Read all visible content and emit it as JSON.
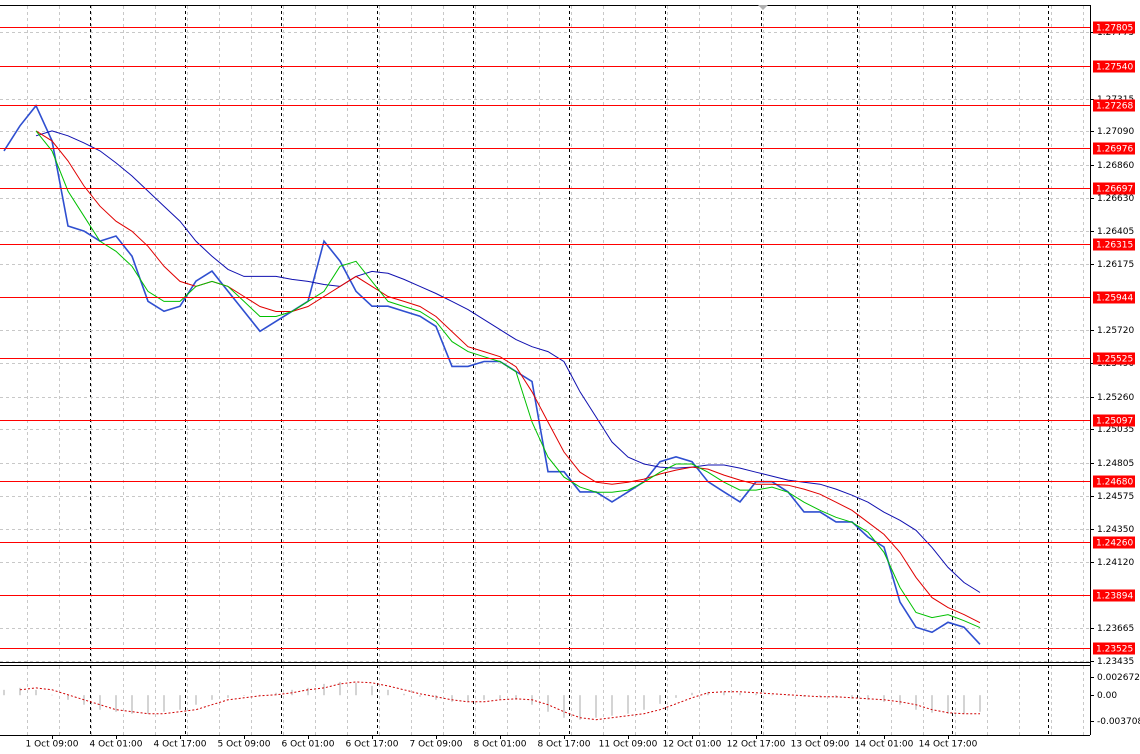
{
  "chart_data": [
    {
      "type": "line",
      "categories": [
        null,
        null,
        null,
        "1 Oct 09:00",
        null,
        null,
        null,
        "4 Oct 01:00",
        null,
        null,
        null,
        "4 Oct 17:00",
        null,
        null,
        null,
        "5 Oct 09:00",
        null,
        null,
        null,
        "6 Oct 01:00",
        null,
        null,
        null,
        "6 Oct 17:00",
        null,
        null,
        null,
        "7 Oct 09:00",
        null,
        null,
        null,
        "8 Oct 01:00",
        null,
        null,
        null,
        "8 Oct 17:00",
        null,
        null,
        null,
        "11 Oct 09:00",
        null,
        null,
        null,
        "12 Oct 01:00",
        null,
        null,
        null,
        "12 Oct 17:00",
        null,
        null,
        null,
        "13 Oct 09:00",
        null,
        null,
        null,
        "14 Oct 01:00",
        null,
        null,
        null,
        "14 Oct 17:00",
        null,
        null
      ],
      "series": [
        {
          "color": "#2f4fd0",
          "values": [
            1.26954,
            1.27127,
            1.27266,
            1.27024,
            1.26436,
            1.26401,
            1.26332,
            1.26367,
            1.26228,
            1.25917,
            1.25848,
            1.25883,
            1.26056,
            1.26125,
            1.25986,
            1.25848,
            1.2571,
            1.25779,
            1.25848,
            1.25917,
            1.26332,
            1.26194,
            1.25986,
            1.25883,
            1.25883,
            1.25848,
            1.25814,
            1.25744,
            1.25468,
            1.25468,
            1.25502,
            1.25502,
            1.25433,
            1.25364,
            1.24742,
            1.24742,
            1.24603,
            1.24603,
            1.24534,
            1.24603,
            1.24673,
            1.24811,
            1.24845,
            1.24811,
            1.24673,
            1.24603,
            1.24534,
            1.24673,
            1.24673,
            1.24603,
            1.24465,
            1.24465,
            1.24396,
            1.24396,
            1.24292,
            1.24223,
            1.23843,
            1.2367,
            1.23635,
            1.23704,
            1.2367,
            1.23552
          ]
        },
        {
          "color": "#1010b0",
          "values": [
            null,
            null,
            1.27058,
            1.27092,
            1.27058,
            1.27009,
            1.26954,
            1.26871,
            1.26781,
            1.26677,
            1.26573,
            1.26469,
            1.26331,
            1.26227,
            1.26137,
            1.26089,
            1.26089,
            1.26089,
            1.26068,
            1.26054,
            1.26033,
            1.2602,
            1.26089,
            1.26123,
            1.2611,
            1.26068,
            1.2602,
            1.25971,
            1.25916,
            1.2586,
            1.25791,
            1.25722,
            1.25653,
            1.25604,
            1.2557,
            1.25501,
            1.25293,
            1.2512,
            1.24947,
            1.24843,
            1.24795,
            1.24774,
            1.24767,
            1.24774,
            1.24788,
            1.24788,
            1.24767,
            1.24739,
            1.24712,
            1.24684,
            1.2467,
            1.24656,
            1.24622,
            1.2458,
            1.24532,
            1.24463,
            1.24407,
            1.24338,
            1.2422,
            1.24082,
            1.23978,
            1.23909
          ]
        },
        {
          "color": "#e00000",
          "values": [
            null,
            null,
            1.27092,
            1.27023,
            1.26885,
            1.26712,
            1.26573,
            1.26469,
            1.264,
            1.26296,
            1.26158,
            1.26054,
            1.2602,
            1.26054,
            1.2602,
            1.2595,
            1.25881,
            1.25847,
            1.25847,
            1.25881,
            1.2595,
            1.2602,
            1.26089,
            1.2602,
            1.2595,
            1.25916,
            1.25881,
            1.25812,
            1.25708,
            1.25604,
            1.2557,
            1.25535,
            1.25466,
            1.25293,
            1.25085,
            1.24878,
            1.24739,
            1.2467,
            1.24656,
            1.2467,
            1.24691,
            1.24726,
            1.24753,
            1.24774,
            1.2476,
            1.24719,
            1.24684,
            1.24656,
            1.24656,
            1.24649,
            1.24622,
            1.24587,
            1.24532,
            1.24476,
            1.24393,
            1.2431,
            1.24186,
            1.24013,
            1.23874,
            1.23805,
            1.23757,
            1.23701
          ]
        },
        {
          "color": "#00c000",
          "values": [
            null,
            null,
            1.27092,
            1.26954,
            1.26677,
            1.26504,
            1.26331,
            1.26262,
            1.26158,
            1.25985,
            1.25916,
            1.25916,
            1.2602,
            1.26054,
            1.2602,
            1.25916,
            1.25812,
            1.25812,
            1.25847,
            1.25916,
            1.25985,
            1.26158,
            1.26193,
            1.26054,
            1.25916,
            1.25881,
            1.25847,
            1.25777,
            1.25639,
            1.2557,
            1.25535,
            1.25501,
            1.25431,
            1.25085,
            1.24843,
            1.24705,
            1.24636,
            1.24601,
            1.24601,
            1.24615,
            1.2467,
            1.24739,
            1.24795,
            1.24795,
            1.24739,
            1.2467,
            1.24615,
            1.24615,
            1.24636,
            1.24601,
            1.24532,
            1.24476,
            1.24428,
            1.24393,
            1.24324,
            1.24186,
            1.23944,
            1.23771,
            1.23736,
            1.23757,
            1.23715,
            1.23667
          ]
        }
      ],
      "ylim": [
        1.2343,
        1.2796
      ],
      "yticks": [
        1.27775,
        1.27315,
        {
          "value": 1.2709,
          "label": "1.27090"
        },
        {
          "value": 1.2686,
          "label": "1.26860"
        },
        {
          "value": 1.2663,
          "label": "1.26630"
        },
        1.26405,
        1.26175,
        {
          "value": 1.2572,
          "label": "1.25720"
        },
        {
          "value": 1.2549,
          "label": "1.25490"
        },
        {
          "value": 1.2526,
          "label": "1.25260"
        },
        1.25035,
        1.24805,
        1.24575,
        {
          "value": 1.2435,
          "label": "1.24350"
        },
        {
          "value": 1.2412,
          "label": "1.24120"
        },
        1.23665,
        1.23435
      ],
      "levels": [
        1.27805,
        {
          "value": 1.2754,
          "label": "1.27540"
        },
        1.27268,
        1.26976,
        1.26697,
        1.26315,
        1.25944,
        1.25525,
        1.25097,
        {
          "value": 1.2468,
          "label": "1.24680"
        },
        {
          "value": 1.2426,
          "label": "1.24260"
        },
        1.23894,
        1.23525
      ],
      "level_color": "#ff0000",
      "grid": true
    },
    {
      "type": "macd",
      "series": [
        {
          "kind": "bar",
          "color": "#a8a8a8",
          "values": [
            0.00078,
            0.00107,
            0.00078,
            6e-05,
            -0.00067,
            -0.00139,
            -0.00212,
            -0.00241,
            -0.0027,
            -0.0027,
            -0.00241,
            -0.00212,
            -0.00139,
            -0.00067,
            -0.00038,
            -9e-05,
            6e-05,
            0.00035,
            0.00078,
            0.00107,
            0.00165,
            0.00194,
            0.0018,
            0.00136,
            0.00078,
            0.0002,
            -0.00023,
            -0.00067,
            -0.00096,
            -0.00096,
            -0.00067,
            -0.00052,
            -0.00067,
            -0.00139,
            -0.00241,
            -0.00328,
            -0.00357,
            -0.00328,
            -0.00299,
            -0.0027,
            -0.00212,
            -0.00125,
            -0.00038,
            0.00035,
            0.00049,
            0.00049,
            0.00035,
            0.0002,
            6e-05,
            -9e-05,
            -0.00023,
            -0.00023,
            -0.00038,
            -0.00052,
            -0.00067,
            -0.00096,
            -0.00139,
            -0.00212,
            -0.00255,
            -0.0027,
            -0.0027,
            -0.00241
          ]
        },
        {
          "kind": "line",
          "color": "#d00000",
          "values": [
            null,
            0.00078,
            0.00107,
            0.00078,
            6e-05,
            -0.00067,
            -0.00139,
            -0.00212,
            -0.00241,
            -0.0027,
            -0.0027,
            -0.00241,
            -0.00212,
            -0.00139,
            -0.00067,
            -0.00038,
            -9e-05,
            6e-05,
            0.00035,
            0.00078,
            0.00107,
            0.00165,
            0.00194,
            0.0018,
            0.00136,
            0.00078,
            0.0002,
            -0.00023,
            -0.00067,
            -0.00096,
            -0.00096,
            -0.00067,
            -0.00052,
            -0.00067,
            -0.00139,
            -0.00241,
            -0.00328,
            -0.00357,
            -0.00328,
            -0.00299,
            -0.0027,
            -0.00212,
            -0.00125,
            -0.00038,
            0.00035,
            0.00049,
            0.00049,
            0.00035,
            0.0002,
            6e-05,
            -9e-05,
            -0.00023,
            -0.00023,
            -0.00038,
            -0.00052,
            -0.00067,
            -0.00096,
            -0.00139,
            -0.00212,
            -0.00255,
            -0.0027,
            -0.0027
          ]
        }
      ],
      "ylim": [
        -0.0058,
        0.0044
      ],
      "yticks": [
        0.002672,
        {
          "value": 0,
          "label": "0.00"
        },
        -0.003708
      ]
    }
  ]
}
